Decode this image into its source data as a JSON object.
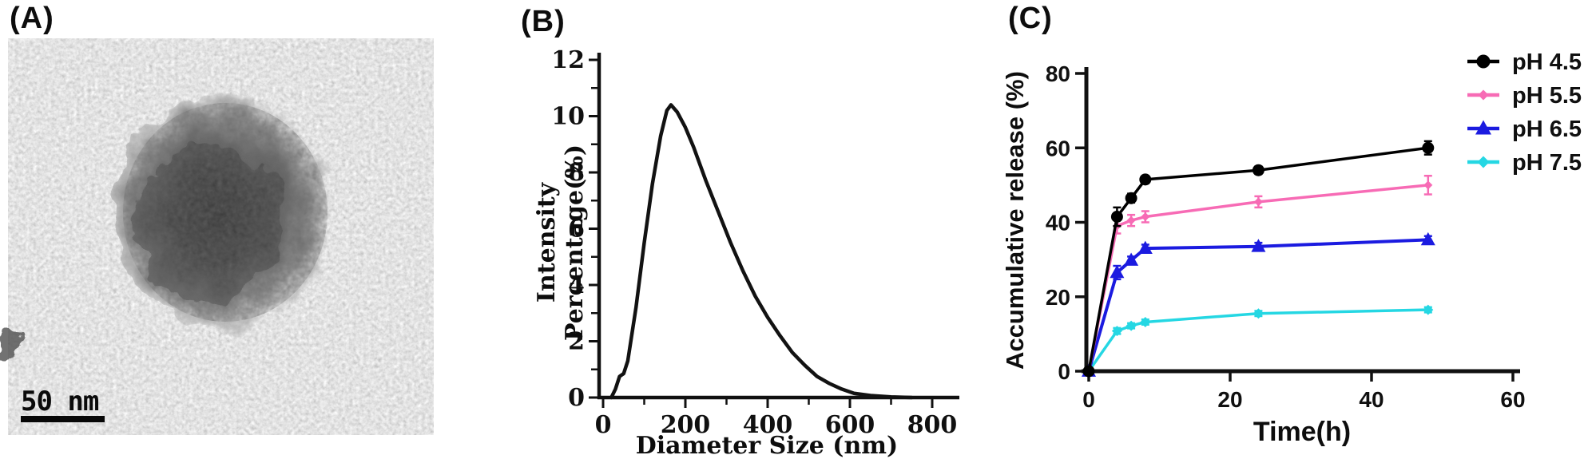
{
  "panels": {
    "a": {
      "label": "(A)",
      "scale_bar_text": "50 nm",
      "description": "TEM micrograph of a single nanoparticle"
    },
    "b": {
      "label": "(B)"
    },
    "c": {
      "label": "(C)"
    }
  },
  "colors": {
    "ink": "#111111",
    "ph45": "#000000",
    "ph55": "#f76bb5",
    "ph65": "#1b1be0",
    "ph75": "#25d7e3"
  },
  "chart_data": [
    {
      "id": "size-distribution",
      "panel": "B",
      "type": "line",
      "title": "",
      "xlabel": "Diameter Size (nm)",
      "ylabel": "Intensity Percentage(%)",
      "xlim": [
        0,
        870
      ],
      "ylim": [
        0,
        12
      ],
      "x_ticks": [
        0,
        200,
        400,
        600,
        800
      ],
      "x_minor_ticks": [
        100,
        300,
        500,
        700
      ],
      "y_ticks": [
        0,
        2,
        4,
        6,
        8,
        10,
        12
      ],
      "y_minor_ticks": [
        1,
        3,
        5,
        7,
        9,
        11
      ],
      "grid": false,
      "series": [
        {
          "name": "intensity",
          "color": "#121212",
          "x": [
            20,
            30,
            40,
            50,
            60,
            80,
            100,
            120,
            140,
            155,
            165,
            180,
            200,
            220,
            250,
            280,
            310,
            340,
            370,
            400,
            430,
            460,
            490,
            520,
            550,
            580,
            610,
            650,
            700,
            750
          ],
          "y": [
            0,
            0.3,
            0.75,
            0.85,
            1.3,
            3.2,
            5.5,
            7.6,
            9.3,
            10.2,
            10.4,
            10.15,
            9.6,
            8.9,
            7.7,
            6.6,
            5.5,
            4.5,
            3.6,
            2.85,
            2.2,
            1.6,
            1.15,
            0.75,
            0.5,
            0.3,
            0.15,
            0.07,
            0.02,
            0
          ]
        }
      ],
      "peak": {
        "x": 165,
        "y": 10.4
      }
    },
    {
      "id": "accumulative-release",
      "panel": "C",
      "type": "line",
      "title": "",
      "xlabel": "Time(h)",
      "ylabel": "Accumulative release (%)",
      "xlim": [
        0,
        60
      ],
      "ylim": [
        0,
        80
      ],
      "x_ticks": [
        0,
        20,
        40,
        60
      ],
      "y_ticks": [
        0,
        20,
        40,
        60,
        80
      ],
      "grid": false,
      "legend_position": "top-right",
      "x": [
        0,
        4,
        6,
        8,
        24,
        48
      ],
      "series": [
        {
          "name": "pH 4.5",
          "color": "#000000",
          "marker": "circle",
          "values": [
            0,
            41.5,
            46.5,
            51.5,
            54,
            60
          ],
          "errors": [
            0,
            2.5,
            1.2,
            1,
            1,
            1.8
          ]
        },
        {
          "name": "pH 5.5",
          "color": "#f76bb5",
          "marker": "diamond",
          "values": [
            0,
            39,
            40.5,
            41.5,
            45.5,
            50
          ],
          "errors": [
            0,
            2,
            1.5,
            1.5,
            1.5,
            2.5
          ]
        },
        {
          "name": "pH 6.5",
          "color": "#1b1be0",
          "marker": "triangle",
          "values": [
            0,
            26.5,
            29.8,
            33,
            33.5,
            35.3
          ],
          "errors": [
            0,
            1.8,
            1,
            1,
            1,
            1
          ]
        },
        {
          "name": "pH 7.5",
          "color": "#25d7e3",
          "marker": "diamond",
          "values": [
            0,
            10.8,
            12.2,
            13.2,
            15.5,
            16.5
          ],
          "errors": [
            0,
            0.8,
            0.7,
            0.7,
            0.7,
            0.7
          ]
        }
      ]
    }
  ]
}
